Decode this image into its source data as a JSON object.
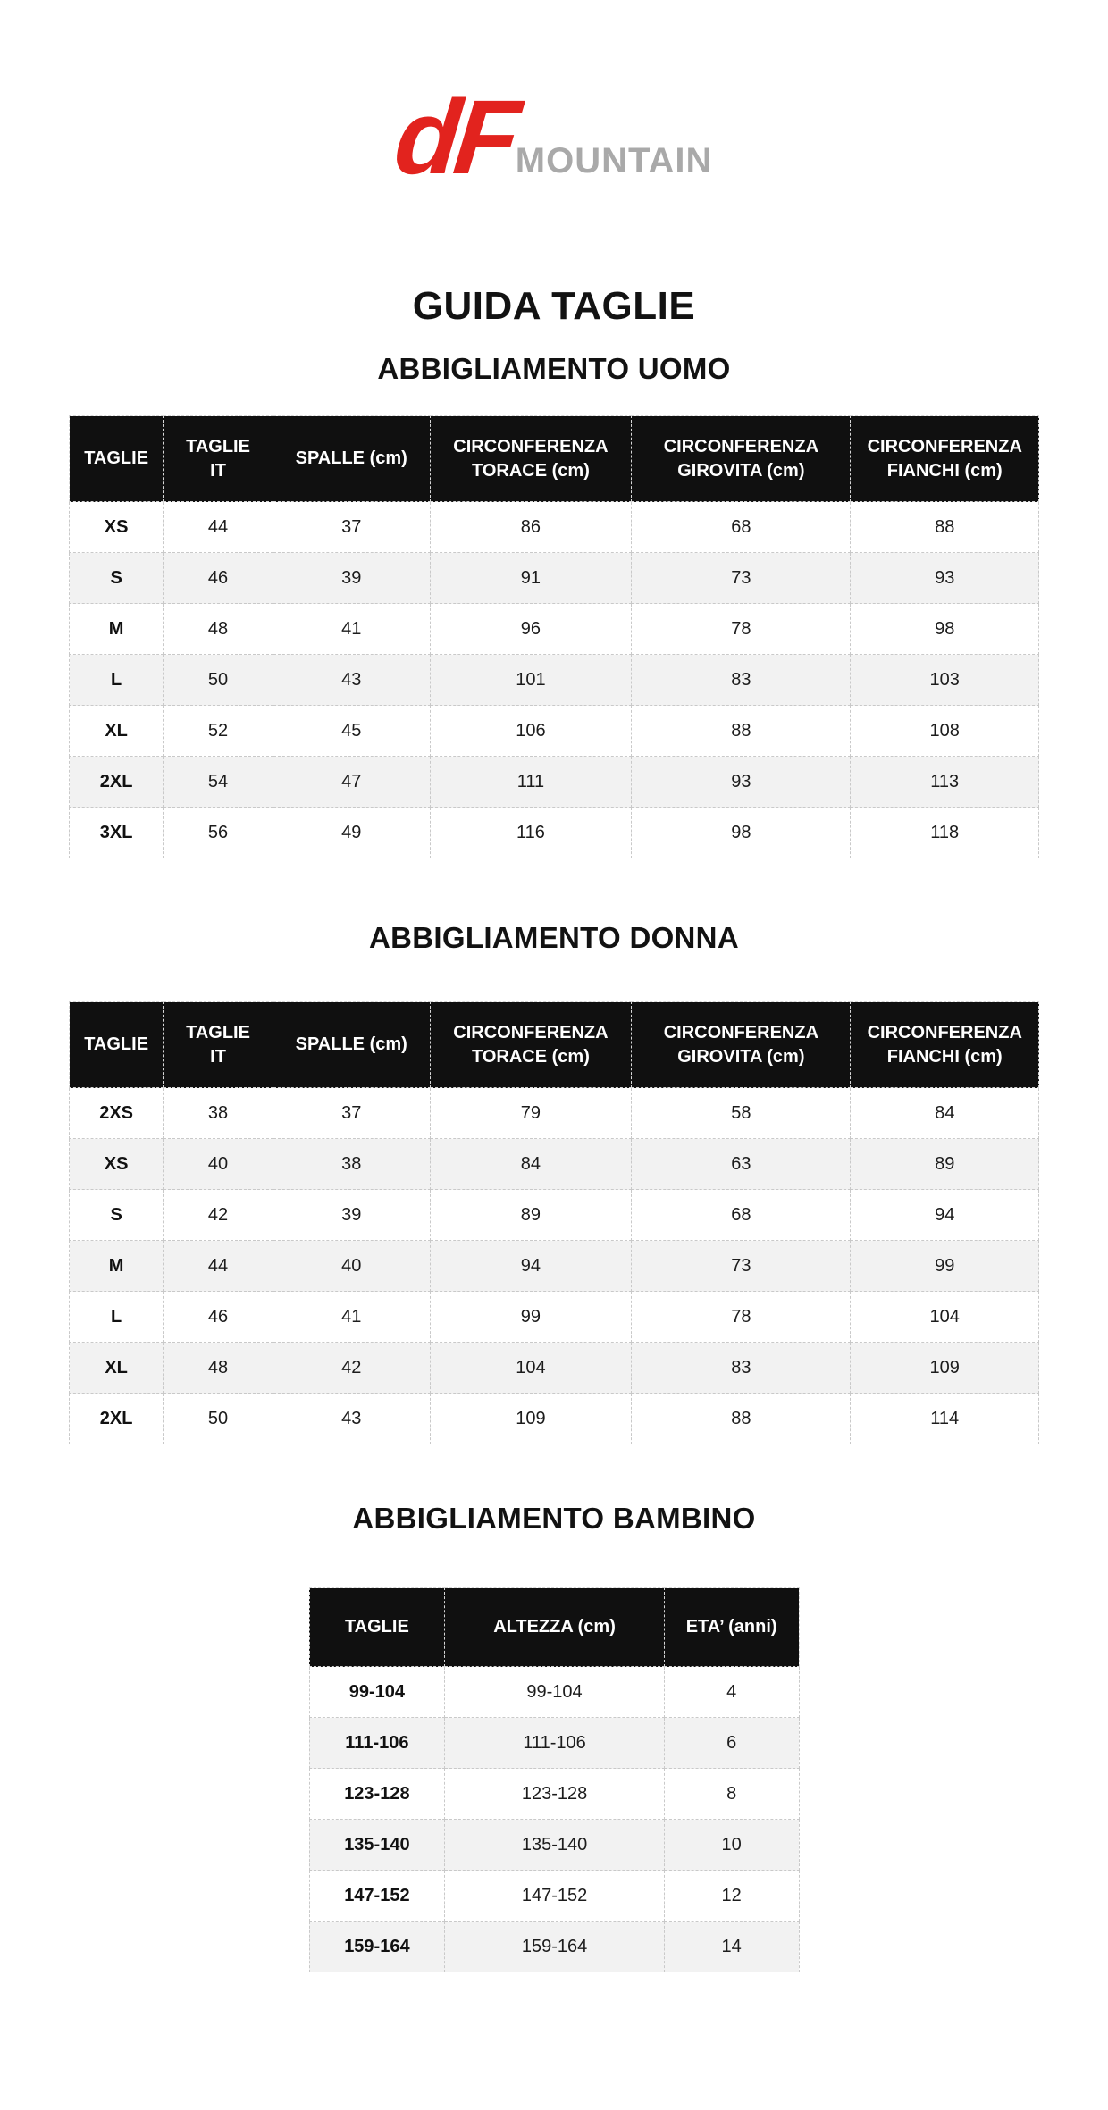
{
  "brand": {
    "logo_text": "dF",
    "logo_suffix": "MOUNTAIN"
  },
  "title": "GUIDA TAGLIE",
  "colors": {
    "logo_red": "#e2231e",
    "logo_gray": "#a9a9a9",
    "table_header_bg": "#101010",
    "row_alternate": "#f2f2f2"
  },
  "sections": [
    {
      "heading": "ABBIGLIAMENTO UOMO",
      "table_kind": "main",
      "columns": [
        "TAGLIE",
        "TAGLIE\nIT",
        "SPALLE (cm)",
        "CIRCONFERENZA\nTORACE (cm)",
        "CIRCONFERENZA\nGIROVITA (cm)",
        "CIRCONFERENZA\nFIANCHI (cm)"
      ],
      "rows": [
        [
          "XS",
          "44",
          "37",
          "86",
          "68",
          "88"
        ],
        [
          "S",
          "46",
          "39",
          "91",
          "73",
          "93"
        ],
        [
          "M",
          "48",
          "41",
          "96",
          "78",
          "98"
        ],
        [
          "L",
          "50",
          "43",
          "101",
          "83",
          "103"
        ],
        [
          "XL",
          "52",
          "45",
          "106",
          "88",
          "108"
        ],
        [
          "2XL",
          "54",
          "47",
          "111",
          "93",
          "113"
        ],
        [
          "3XL",
          "56",
          "49",
          "116",
          "98",
          "118"
        ]
      ]
    },
    {
      "heading": "ABBIGLIAMENTO DONNA",
      "table_kind": "main",
      "columns": [
        "TAGLIE",
        "TAGLIE\nIT",
        "SPALLE (cm)",
        "CIRCONFERENZA\nTORACE (cm)",
        "CIRCONFERENZA\nGIROVITA (cm)",
        "CIRCONFERENZA\nFIANCHI (cm)"
      ],
      "rows": [
        [
          "2XS",
          "38",
          "37",
          "79",
          "58",
          "84"
        ],
        [
          "XS",
          "40",
          "38",
          "84",
          "63",
          "89"
        ],
        [
          "S",
          "42",
          "39",
          "89",
          "68",
          "94"
        ],
        [
          "M",
          "44",
          "40",
          "94",
          "73",
          "99"
        ],
        [
          "L",
          "46",
          "41",
          "99",
          "78",
          "104"
        ],
        [
          "XL",
          "48",
          "42",
          "104",
          "83",
          "109"
        ],
        [
          "2XL",
          "50",
          "43",
          "109",
          "88",
          "114"
        ]
      ]
    },
    {
      "heading": "ABBIGLIAMENTO BAMBINO",
      "table_kind": "kids",
      "columns": [
        "TAGLIE",
        "ALTEZZA (cm)",
        "ETA’ (anni)"
      ],
      "rows": [
        [
          "99-104",
          "99-104",
          "4"
        ],
        [
          "111-106",
          "111-106",
          "6"
        ],
        [
          "123-128",
          "123-128",
          "8"
        ],
        [
          "135-140",
          "135-140",
          "10"
        ],
        [
          "147-152",
          "147-152",
          "12"
        ],
        [
          "159-164",
          "159-164",
          "14"
        ]
      ]
    }
  ]
}
